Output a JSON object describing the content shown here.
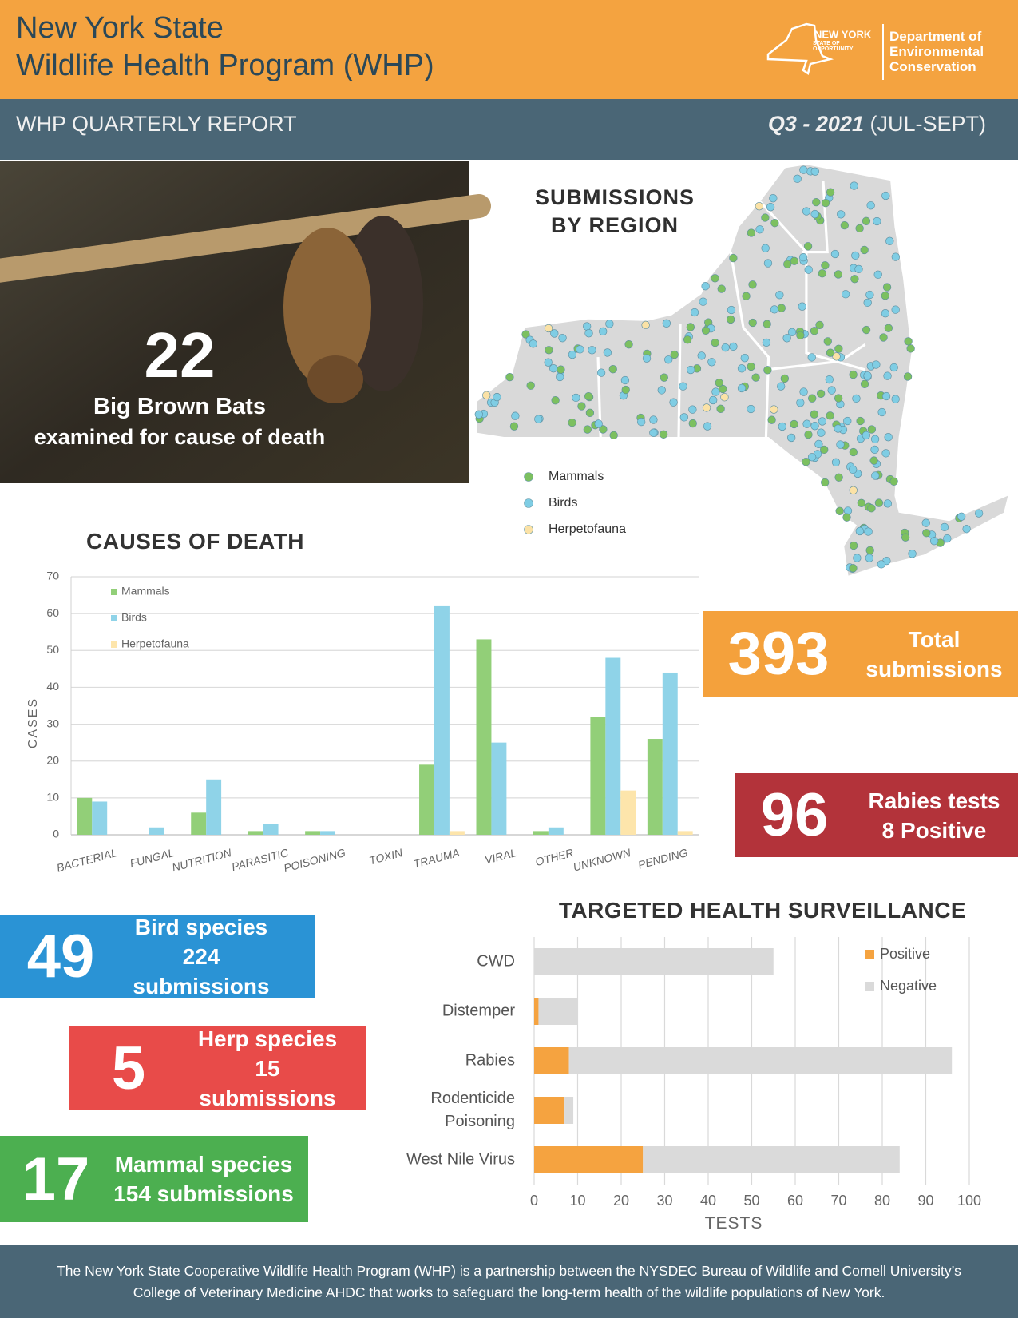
{
  "header": {
    "title_line1": "New York State",
    "title_line2": "Wildlife Health Program (WHP)",
    "logo_state": "NEW YORK",
    "logo_tagline": "STATE OF OPPORTUNITY",
    "logo_department": "Department of Environmental Conservation"
  },
  "banner": {
    "left": "WHP QUARTERLY REPORT",
    "period": "Q3 - 2021",
    "months": "(JUL-SEPT)"
  },
  "feature": {
    "number": 22,
    "line1": "Big Brown Bats",
    "line2": "examined for cause of death"
  },
  "map": {
    "title_lines": [
      "SUBMISSIONS",
      "BY REGION"
    ],
    "legend": [
      {
        "name": "Mammals",
        "color": "#7cc060"
      },
      {
        "name": "Birds",
        "color": "#7fcde4"
      },
      {
        "name": "Herpetofauna",
        "color": "#fbe2a6"
      }
    ]
  },
  "stats": [
    {
      "number": 393,
      "lines": [
        "Total",
        "submissions"
      ],
      "color": "#f4a13c"
    },
    {
      "number": 96,
      "lines": [
        "Rabies tests",
        "8 Positive"
      ],
      "color": "#b3333a"
    },
    {
      "number": 49,
      "lines": [
        "Bird species",
        "224 submissions"
      ],
      "color": "#2a93d5"
    },
    {
      "number": 5,
      "lines": [
        "Herp species",
        "15 submissions"
      ],
      "color": "#e84b49"
    },
    {
      "number": 17,
      "lines": [
        "Mammal species",
        "154 submissions"
      ],
      "color": "#4caf50"
    }
  ],
  "chart_data": [
    {
      "type": "bar",
      "title": "CAUSES OF DEATH",
      "y_label": "CASES",
      "categories": [
        "BACTERIAL",
        "FUNGAL",
        "NUTRITION",
        "PARASITIC",
        "POISONING",
        "TOXIN",
        "TRAUMA",
        "VIRAL",
        "OTHER",
        "UNKNOWN",
        "PENDING"
      ],
      "series": [
        {
          "name": "Mammals",
          "color": "#92cf78",
          "values": [
            10,
            0,
            6,
            1,
            1,
            0,
            19,
            53,
            1,
            32,
            26
          ]
        },
        {
          "name": "Birds",
          "color": "#8fd3e8",
          "values": [
            9,
            2,
            15,
            3,
            1,
            0,
            62,
            25,
            2,
            48,
            44
          ]
        },
        {
          "name": "Herpetofauna",
          "color": "#fde5ab",
          "values": [
            0,
            0,
            0,
            0,
            0,
            0,
            1,
            0,
            0,
            12,
            1
          ]
        }
      ],
      "ylim": [
        0,
        70
      ],
      "yticks": [
        0,
        10,
        20,
        30,
        40,
        50,
        60,
        70
      ],
      "grid": true,
      "legend": "upper left"
    },
    {
      "type": "stacked_barh",
      "title": "TARGETED HEALTH SURVEILLANCE",
      "x_label": "TESTS",
      "categories": [
        "CWD",
        "Distemper",
        "Rabies",
        "Rodenticide Poisoning",
        "West Nile Virus"
      ],
      "series": [
        {
          "name": "Positive",
          "color": "#f5a340",
          "values": [
            0,
            1,
            8,
            7,
            25
          ]
        },
        {
          "name": "Negative",
          "color": "#dadada",
          "values": [
            55,
            9,
            88,
            2,
            59
          ]
        }
      ],
      "xlim": [
        0,
        100
      ],
      "xticks": [
        0,
        10,
        20,
        30,
        40,
        50,
        60,
        70,
        80,
        90,
        100
      ],
      "grid": true,
      "legend": "upper right"
    }
  ],
  "footer": {
    "text": "The New York State Cooperative Wildlife Health Program (WHP) is a partnership between the NYSDEC Bureau of Wildlife and Cornell University’s College of Veterinary Medicine AHDC that works to safeguard the long-term health of the wildlife populations of New York."
  }
}
